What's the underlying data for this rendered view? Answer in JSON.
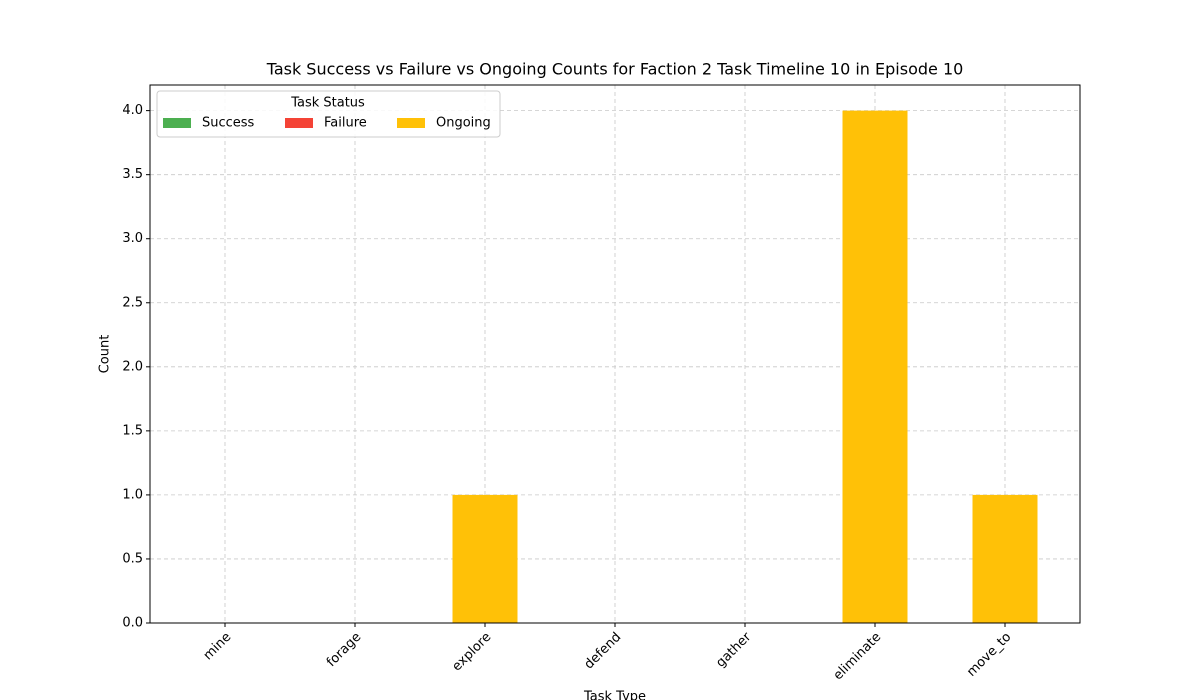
{
  "chart_data": {
    "type": "stacked_bar",
    "title": "Task Success vs Failure vs Ongoing Counts for Faction 2 Task Timeline 10 in Episode 10",
    "x_label": "Task Type",
    "y_label": "Count",
    "categories": [
      "mine",
      "forage",
      "explore",
      "defend",
      "gather",
      "eliminate",
      "move_to"
    ],
    "series": [
      {
        "name": "Success",
        "color": "#4caf50",
        "values": [
          0,
          0,
          0,
          0,
          0,
          0,
          0
        ]
      },
      {
        "name": "Failure",
        "color": "#f44336",
        "values": [
          0,
          0,
          0,
          0,
          0,
          0,
          0
        ]
      },
      {
        "name": "Ongoing",
        "color": "#ffc107",
        "values": [
          0,
          0,
          1,
          0,
          0,
          4,
          1
        ]
      }
    ],
    "ylim": [
      0,
      4.2
    ],
    "yticks": [
      {
        "value": 0,
        "label": "0.0"
      },
      {
        "value": 0.5,
        "label": "0.5"
      },
      {
        "value": 1,
        "label": "1.0"
      },
      {
        "value": 1.5,
        "label": "1.5"
      },
      {
        "value": 2,
        "label": "2.0"
      },
      {
        "value": 2.5,
        "label": "2.5"
      },
      {
        "value": 3,
        "label": "3.0"
      },
      {
        "value": 3.5,
        "label": "3.5"
      },
      {
        "value": 4,
        "label": "4.0"
      }
    ],
    "grid": true,
    "legend_title": "Task Status",
    "legend_position": "upper left"
  }
}
